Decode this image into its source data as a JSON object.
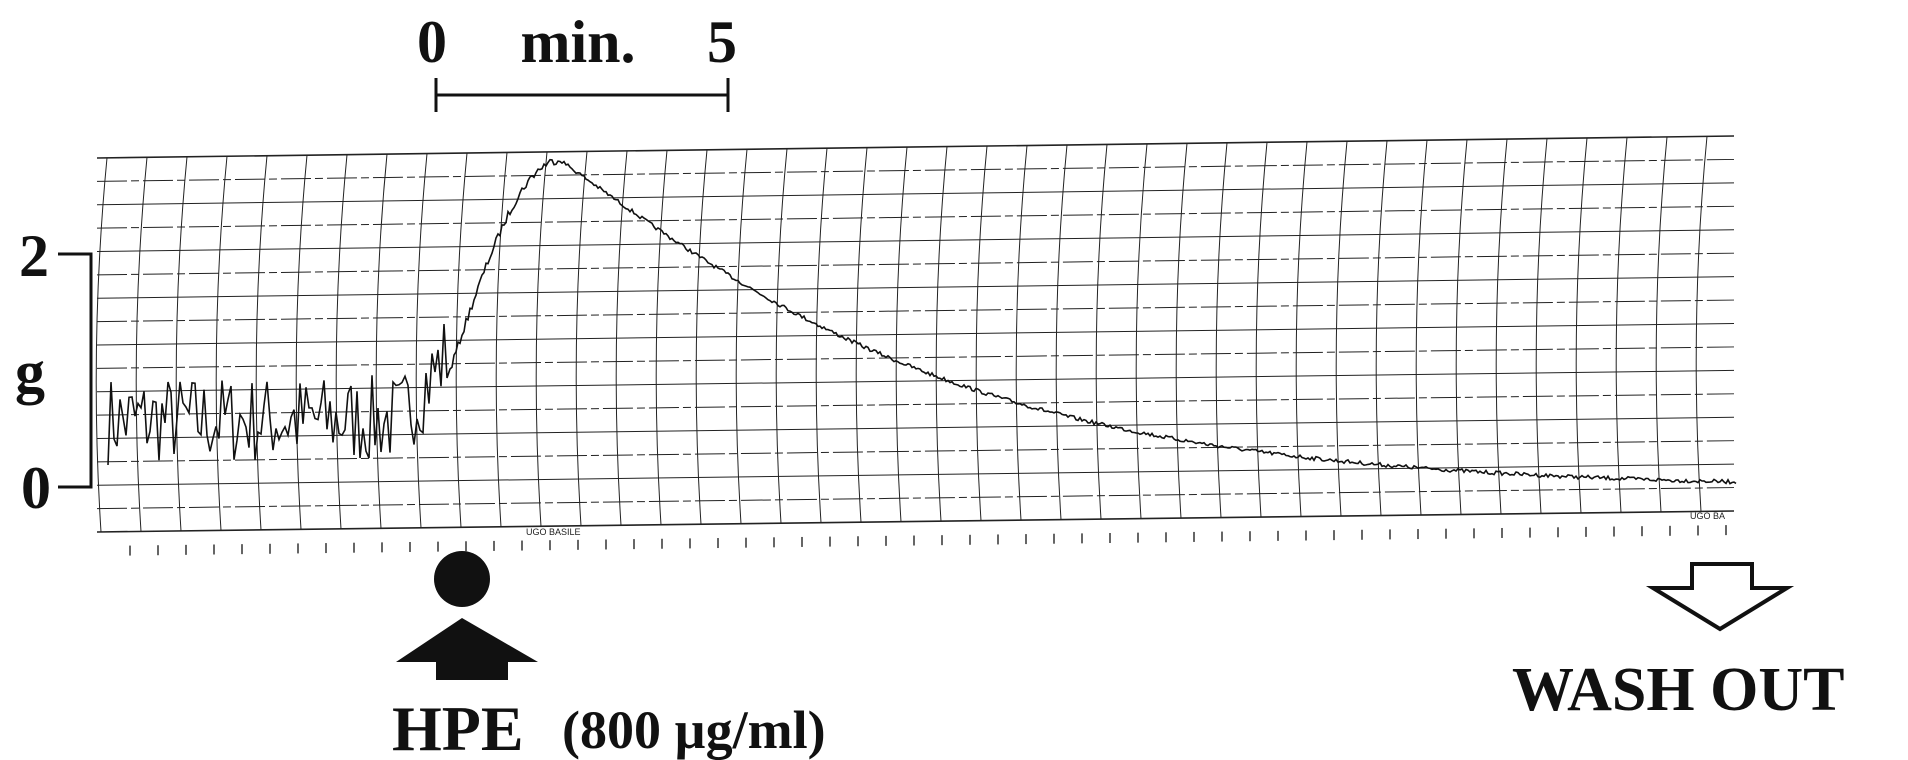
{
  "time_scale": {
    "start": "0",
    "unit": "min.",
    "end": "5"
  },
  "force_scale": {
    "top": "2",
    "unit": "g",
    "bottom": "0"
  },
  "recorder_labels": [
    "UGO BASILE",
    "UGO BA"
  ],
  "annotations": {
    "drug": "HPE",
    "concentration": "(800 µg/ml)",
    "wash": "WASH OUT"
  }
}
